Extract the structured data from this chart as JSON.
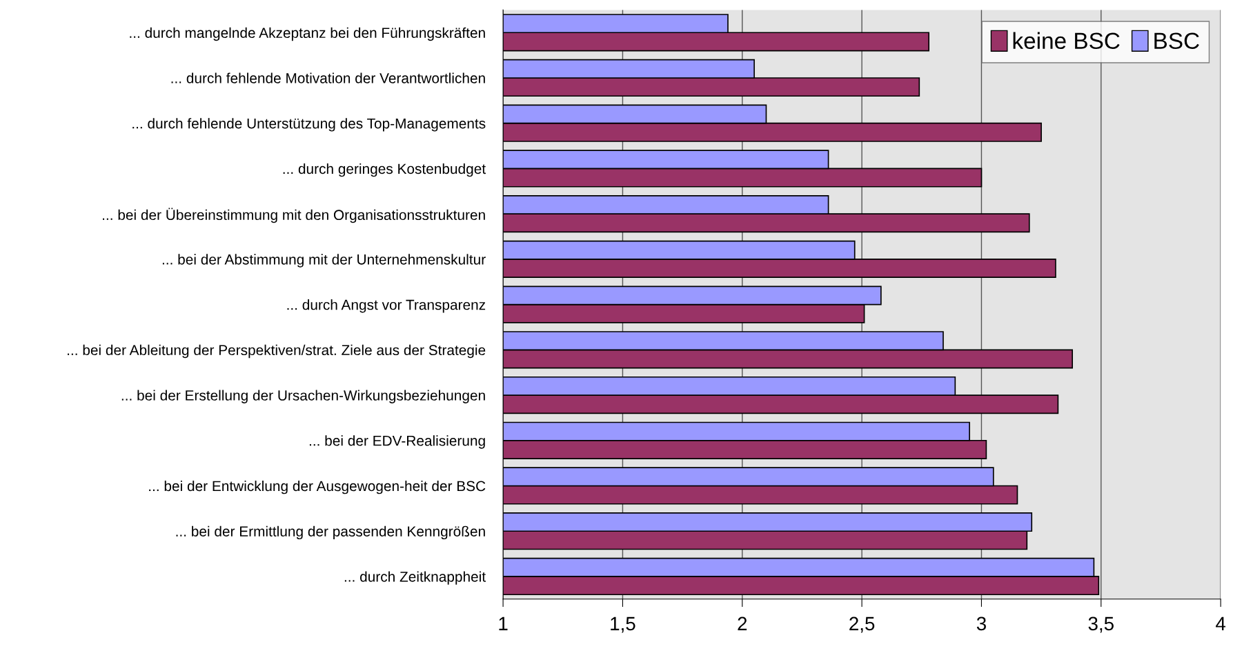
{
  "chart_data": {
    "type": "bar",
    "orientation": "horizontal",
    "categories": [
      "... durch mangelnde Akzeptanz bei den Führungskräften",
      "... durch fehlende Motivation der Verantwortlichen",
      "... durch fehlende Unterstützung des Top-Managements",
      "... durch geringes Kostenbudget",
      "... bei der Übereinstimmung mit den Organisationsstrukturen",
      "... bei der Abstimmung mit der Unternehmenskultur",
      "... durch Angst vor Transparenz",
      "... bei der Ableitung der Perspektiven/strat. Ziele aus der Strategie",
      "... bei der Erstellung der Ursachen-Wirkungsbeziehungen",
      "... bei der EDV-Realisierung",
      "... bei der Entwicklung der Ausgewogen-heit der BSC",
      "... bei der Ermittlung der passenden Kenngrößen",
      "... durch Zeitknappheit"
    ],
    "series": [
      {
        "name": "keine BSC",
        "color": "#993366",
        "values": [
          2.78,
          2.74,
          3.25,
          3.0,
          3.2,
          3.31,
          2.51,
          3.38,
          3.32,
          3.02,
          3.15,
          3.19,
          3.49
        ]
      },
      {
        "name": "BSC",
        "color": "#9999ff",
        "values": [
          1.94,
          2.05,
          2.1,
          2.36,
          2.36,
          2.47,
          2.58,
          2.84,
          2.89,
          2.95,
          3.05,
          3.21,
          3.47
        ]
      }
    ],
    "xlim": [
      1,
      4
    ],
    "xticks": [
      1,
      {
        "value": 1.5,
        "label": "1,5"
      },
      2,
      {
        "value": 2.5,
        "label": "2,5"
      },
      3,
      {
        "value": 3.5,
        "label": "3,5"
      },
      4
    ],
    "grid": "x",
    "legend": "top right"
  }
}
